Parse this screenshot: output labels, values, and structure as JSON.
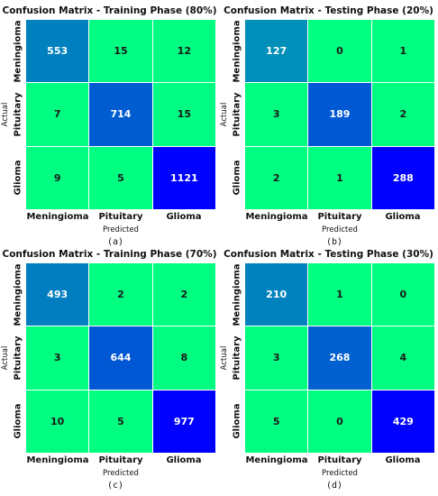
{
  "chart_data": [
    {
      "type": "heatmap",
      "title": "Confusion Matrix - Training Phase (80%)",
      "xlabel": "Predicted",
      "ylabel": "Actual",
      "x_categories": [
        "Meningioma",
        "Pituitary",
        "Glioma"
      ],
      "y_categories": [
        "Meningioma",
        "Pituitary",
        "Glioma"
      ],
      "values": [
        [
          553,
          15,
          12
        ],
        [
          7,
          714,
          15
        ],
        [
          9,
          5,
          1121
        ]
      ],
      "caption": "(a)"
    },
    {
      "type": "heatmap",
      "title": "Confusion Matrix - Testing Phase (20%)",
      "xlabel": "Predicted",
      "ylabel": "Actual",
      "x_categories": [
        "Meningioma",
        "Pituitary",
        "Glioma"
      ],
      "y_categories": [
        "Meningioma",
        "Pituitary",
        "Glioma"
      ],
      "values": [
        [
          127,
          0,
          1
        ],
        [
          3,
          189,
          2
        ],
        [
          2,
          1,
          288
        ]
      ],
      "caption": "(b)"
    },
    {
      "type": "heatmap",
      "title": "Confusion Matrix - Training Phase (70%)",
      "xlabel": "Predicted",
      "ylabel": "Actual",
      "x_categories": [
        "Meningioma",
        "Pituitary",
        "Glioma"
      ],
      "y_categories": [
        "Meningioma",
        "Pituitary",
        "Glioma"
      ],
      "values": [
        [
          493,
          2,
          2
        ],
        [
          3,
          644,
          8
        ],
        [
          10,
          5,
          977
        ]
      ],
      "caption": "(c)"
    },
    {
      "type": "heatmap",
      "title": "Confusion Matrix - Testing Phase (30%)",
      "xlabel": "Predicted",
      "ylabel": "Actual",
      "x_categories": [
        "Meningioma",
        "Pituitary",
        "Glioma"
      ],
      "y_categories": [
        "Meningioma",
        "Pituitary",
        "Glioma"
      ],
      "values": [
        [
          210,
          1,
          0
        ],
        [
          3,
          268,
          4
        ],
        [
          5,
          0,
          429
        ]
      ],
      "caption": "(d)"
    }
  ],
  "colors": {
    "low": "#00ff80",
    "high": "#0000ff",
    "text_light": "#ffffff",
    "text_dark": "#1a1a1a"
  }
}
